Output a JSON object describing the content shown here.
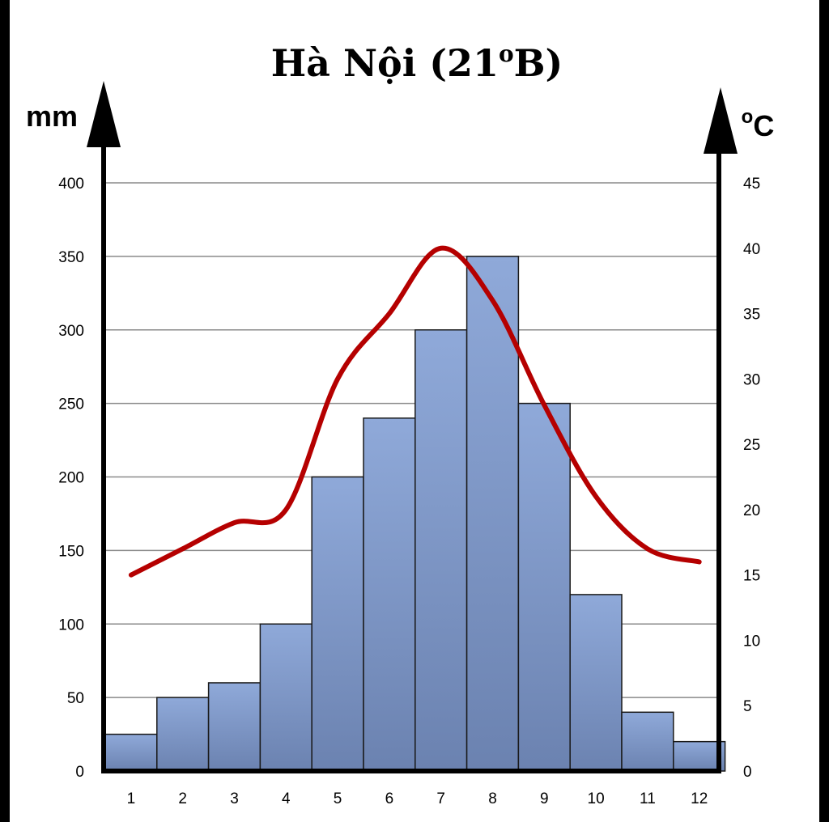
{
  "chart_data": {
    "type": "bar+line",
    "title": "Hà Nội (21",
    "title_sup": "o",
    "title_tail": "B)",
    "categories": [
      "1",
      "2",
      "3",
      "4",
      "5",
      "6",
      "7",
      "8",
      "9",
      "10",
      "11",
      "12"
    ],
    "rainfall": {
      "name": "rainfall",
      "unit": "mm",
      "values": [
        25,
        50,
        60,
        100,
        200,
        240,
        300,
        350,
        250,
        120,
        40,
        20
      ],
      "ylim": [
        0,
        400
      ],
      "ticks": [
        0,
        50,
        100,
        150,
        200,
        250,
        300,
        350,
        400
      ]
    },
    "temperature": {
      "name": "temperature",
      "unit_sup": "o",
      "unit": "C",
      "values": [
        15,
        17,
        19,
        20,
        30,
        35,
        40,
        36,
        28,
        21,
        17,
        16
      ],
      "ylim": [
        0,
        45
      ],
      "ticks": [
        0,
        5,
        10,
        15,
        20,
        25,
        30,
        35,
        40,
        45
      ]
    },
    "grid": true
  },
  "colors": {
    "bar_fill_top": "#8fa9d9",
    "bar_fill_bottom": "#6b82b0",
    "bar_stroke": "#1a1a1a",
    "line": "#b50000",
    "grid": "#8a8a8a",
    "axis": "#000000",
    "background": "#ffffff",
    "frame": "#000000"
  }
}
